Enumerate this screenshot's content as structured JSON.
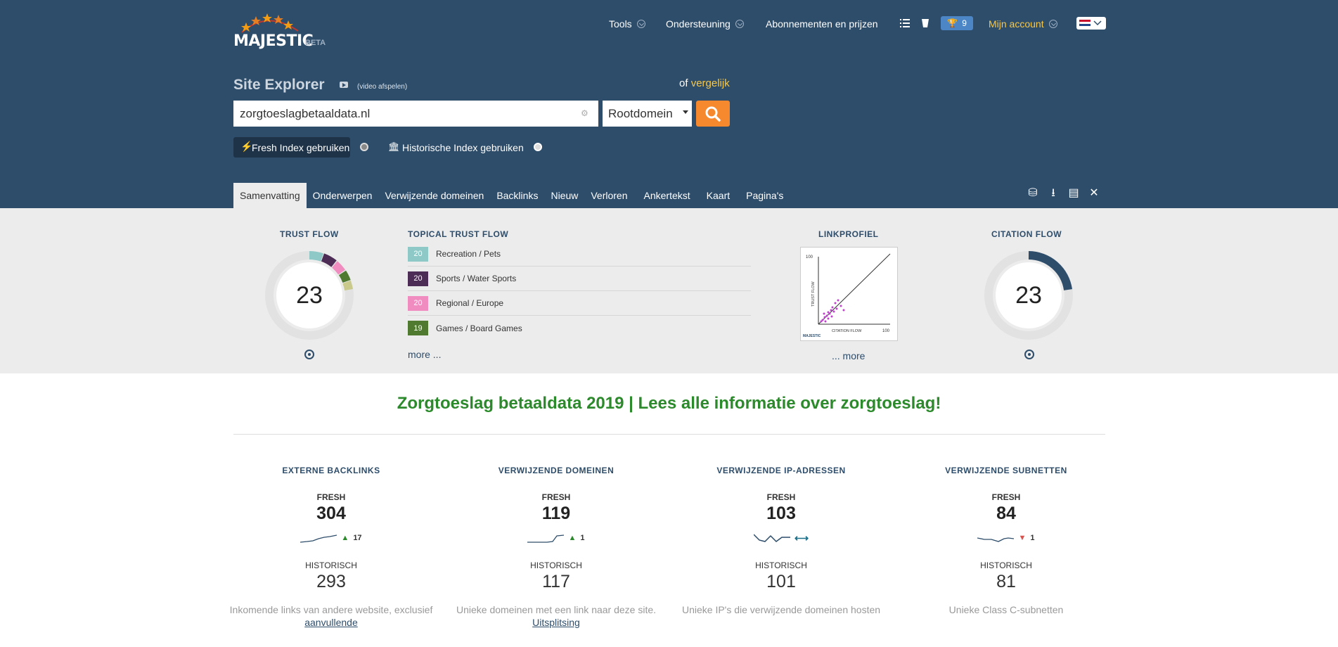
{
  "brand": {
    "name": "MAJESTIC",
    "tag": "BETA"
  },
  "topnav": {
    "tools": "Tools",
    "support": "Ondersteuning",
    "pricing": "Abonnementen en prijzen",
    "trophy_count": "9",
    "account": "Mijn account"
  },
  "explorer": {
    "title": "Site Explorer",
    "video_label": "(video afspelen)",
    "or_text": "of",
    "compare_link": "vergelijk",
    "query": "zorgtoeslagbetaaldata.nl",
    "scope": "Rootdomein",
    "fresh_index": "Fresh Index gebruiken",
    "historic_index": "Historische Index gebruiken"
  },
  "tabs": [
    "Samenvatting",
    "Onderwerpen",
    "Verwijzende domeinen",
    "Backlinks",
    "Nieuw",
    "Verloren",
    "Ankertekst",
    "Kaart",
    "Pagina's"
  ],
  "summary": {
    "trust_flow_label": "TRUST FLOW",
    "trust_flow": "23",
    "topical_label": "TOPICAL TRUST FLOW",
    "topical": [
      {
        "value": "20",
        "label": "Recreation / Pets",
        "color": "#8ec9c7"
      },
      {
        "value": "20",
        "label": "Sports / Water Sports",
        "color": "#4d2d55"
      },
      {
        "value": "20",
        "label": "Regional / Europe",
        "color": "#f08cbf"
      },
      {
        "value": "19",
        "label": "Games / Board Games",
        "color": "#4f7a2f"
      }
    ],
    "topical_more": "more ...",
    "link_profile_label": "LINKPROFIEL",
    "link_profile_more": "... more",
    "link_profile_axes": {
      "y": "TRUST FLOW",
      "x": "CITATION FLOW",
      "max": "100",
      "brand": "MAJESTIC"
    },
    "citation_flow_label": "CITATION FLOW",
    "citation_flow": "23"
  },
  "headline": "Zorgtoeslag betaaldata 2019 | Lees alle informatie over zorgtoeslag!",
  "stats": [
    {
      "title": "EXTERNE BACKLINKS",
      "fresh_label": "FRESH",
      "fresh": "304",
      "delta": "17",
      "trend": "up",
      "hist_label": "HISTORISCH",
      "hist": "293",
      "desc": "Inkomende links van andere website, exclusief",
      "desc_link": "aanvullende"
    },
    {
      "title": "VERWIJZENDE DOMEINEN",
      "fresh_label": "FRESH",
      "fresh": "119",
      "delta": "1",
      "trend": "up",
      "hist_label": "HISTORISCH",
      "hist": "117",
      "desc": "Unieke domeinen met een link naar deze site.",
      "desc_link": "Uitsplitsing"
    },
    {
      "title": "VERWIJZENDE IP-ADRESSEN",
      "fresh_label": "FRESH",
      "fresh": "103",
      "delta": "",
      "trend": "flat",
      "hist_label": "HISTORISCH",
      "hist": "101",
      "desc": "Unieke IP's die verwijzende domeinen hosten",
      "desc_link": ""
    },
    {
      "title": "VERWIJZENDE SUBNETTEN",
      "fresh_label": "FRESH",
      "fresh": "84",
      "delta": "1",
      "trend": "down",
      "hist_label": "HISTORISCH",
      "hist": "81",
      "desc": "Unieke Class C-subnetten",
      "desc_link": ""
    }
  ]
}
